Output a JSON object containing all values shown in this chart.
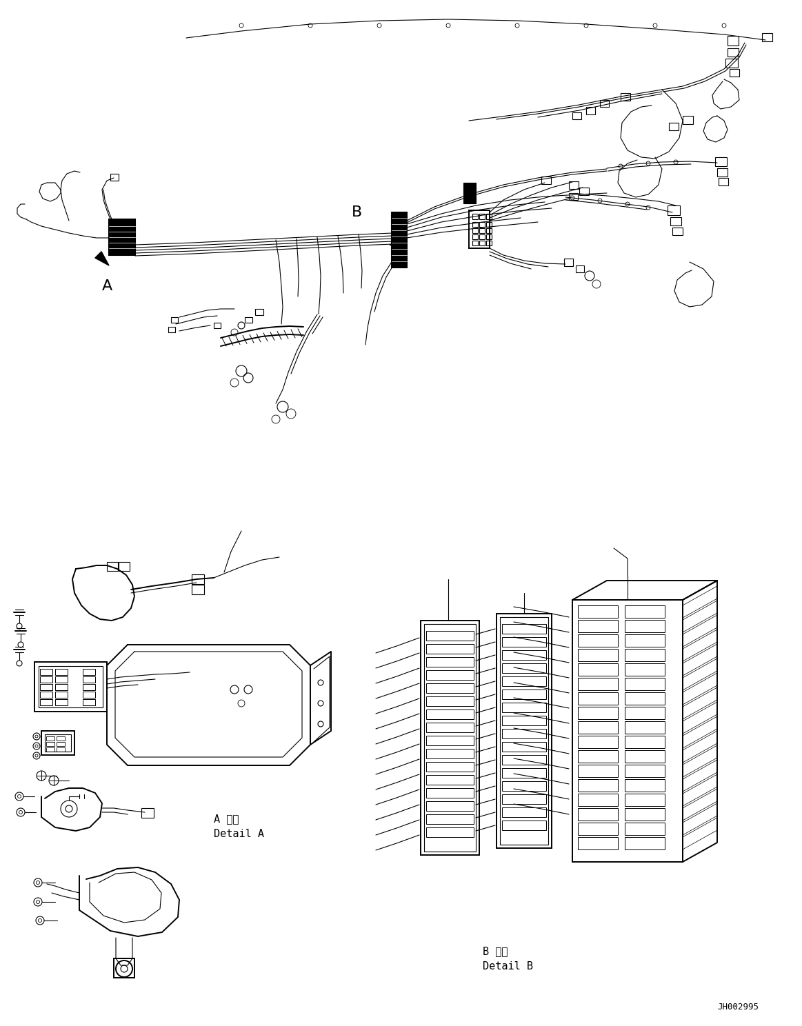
{
  "background_color": "#ffffff",
  "line_color": "#000000",
  "figure_width": 11.63,
  "figure_height": 14.88,
  "dpi": 100,
  "part_code": "JH002995",
  "label_A": "A",
  "label_B": "B",
  "detail_A_ja": "A 詳細",
  "detail_A_en": "Detail A",
  "detail_B_ja": "B 詳細",
  "detail_B_en": "Detail B"
}
